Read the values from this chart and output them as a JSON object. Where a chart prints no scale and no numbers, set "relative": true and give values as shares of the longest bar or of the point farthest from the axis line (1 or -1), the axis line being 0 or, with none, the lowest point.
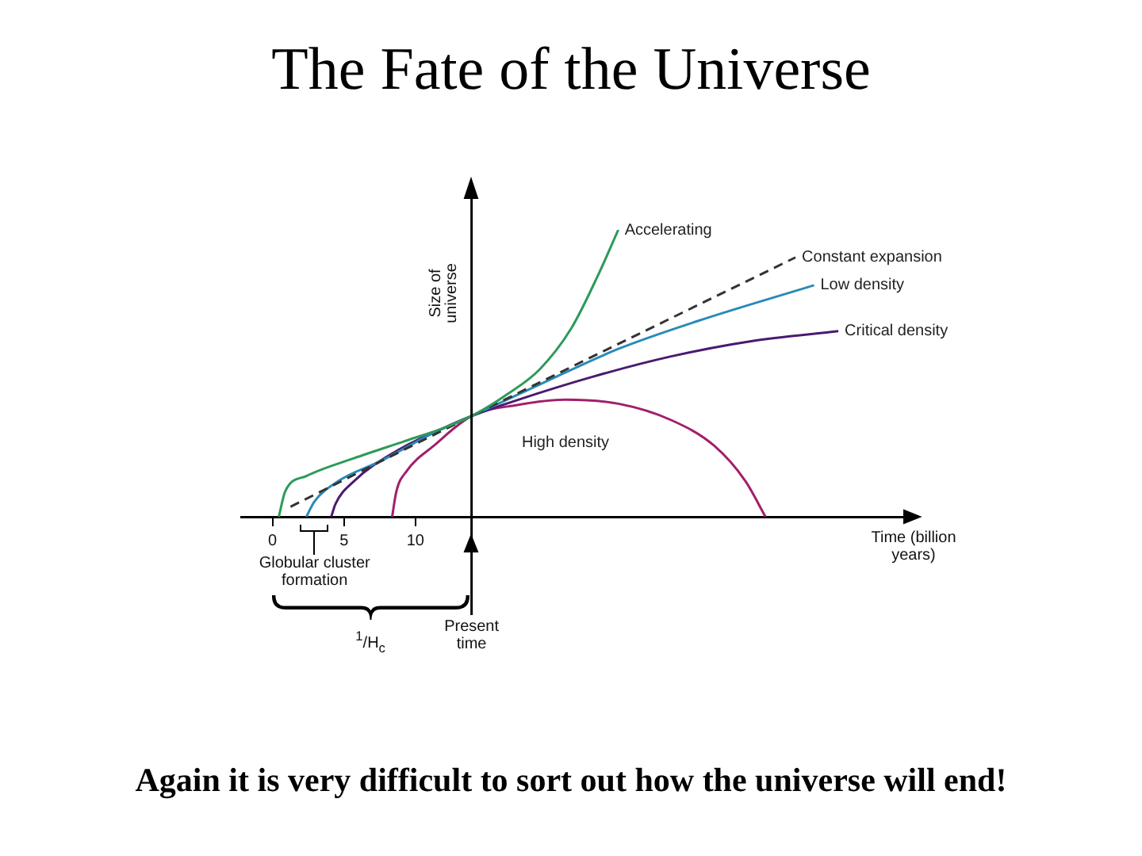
{
  "chart_data": {
    "type": "line",
    "title": "The Fate of the Universe",
    "xlabel": "Time (billion years)",
    "ylabel": "Size of universe",
    "relative": true,
    "xlim": [
      -2.2,
      44.2
    ],
    "xticks": [
      0,
      5,
      10
    ],
    "grid": false,
    "legend": false,
    "marker": "none",
    "series": [
      {
        "name": "Accelerating",
        "color": "#2e9a5a",
        "x": [
          0.44,
          0.89,
          2.37,
          5.7,
          9.4,
          12.0,
          13.93,
          16.4,
          18.7,
          20.9,
          22.7,
          24.2
        ],
        "values": [
          0,
          0.089,
          0.142,
          0.204,
          0.266,
          0.31,
          0.351,
          0.426,
          0.514,
          0.656,
          0.833,
          1.0
        ]
      },
      {
        "name": "Constant expansion",
        "color": "#333333",
        "line_style": "dashed",
        "x": [
          1.26,
          13.93,
          36.6
        ],
        "values": [
          0.035,
          0.351,
          0.904
        ]
      },
      {
        "name": "Low density",
        "color": "#2a8ab8",
        "x": [
          2.37,
          2.93,
          4.6,
          7.6,
          11.3,
          13.93,
          18.7,
          24.2,
          29.8,
          37.9
        ],
        "values": [
          0,
          0.053,
          0.124,
          0.195,
          0.293,
          0.351,
          0.461,
          0.585,
          0.683,
          0.807
        ]
      },
      {
        "name": "Critical density",
        "color": "#4a1a6e",
        "x": [
          4.11,
          4.4,
          5.7,
          8.7,
          12.0,
          13.93,
          17.2,
          22.4,
          27.9,
          33.5,
          39.6
        ],
        "values": [
          0,
          0.044,
          0.124,
          0.23,
          0.31,
          0.351,
          0.408,
          0.488,
          0.559,
          0.612,
          0.647
        ]
      },
      {
        "name": "High density",
        "color": "#a0206a",
        "x": [
          8.37,
          8.67,
          9.4,
          11.3,
          13.93,
          17.2,
          20.5,
          24.2,
          27.9,
          30.9,
          33.1,
          34.5
        ],
        "values": [
          0,
          0.089,
          0.16,
          0.248,
          0.351,
          0.39,
          0.408,
          0.394,
          0.337,
          0.248,
          0.124,
          0
        ]
      }
    ],
    "ref_lines": [
      {
        "axis": "x",
        "value": 13.93,
        "label": "Present time"
      }
    ],
    "annotations": [
      "Globular cluster formation",
      "$^{1}$/H$_{c}$",
      "Again it is very difficult to sort out how the universe will end!"
    ]
  }
}
